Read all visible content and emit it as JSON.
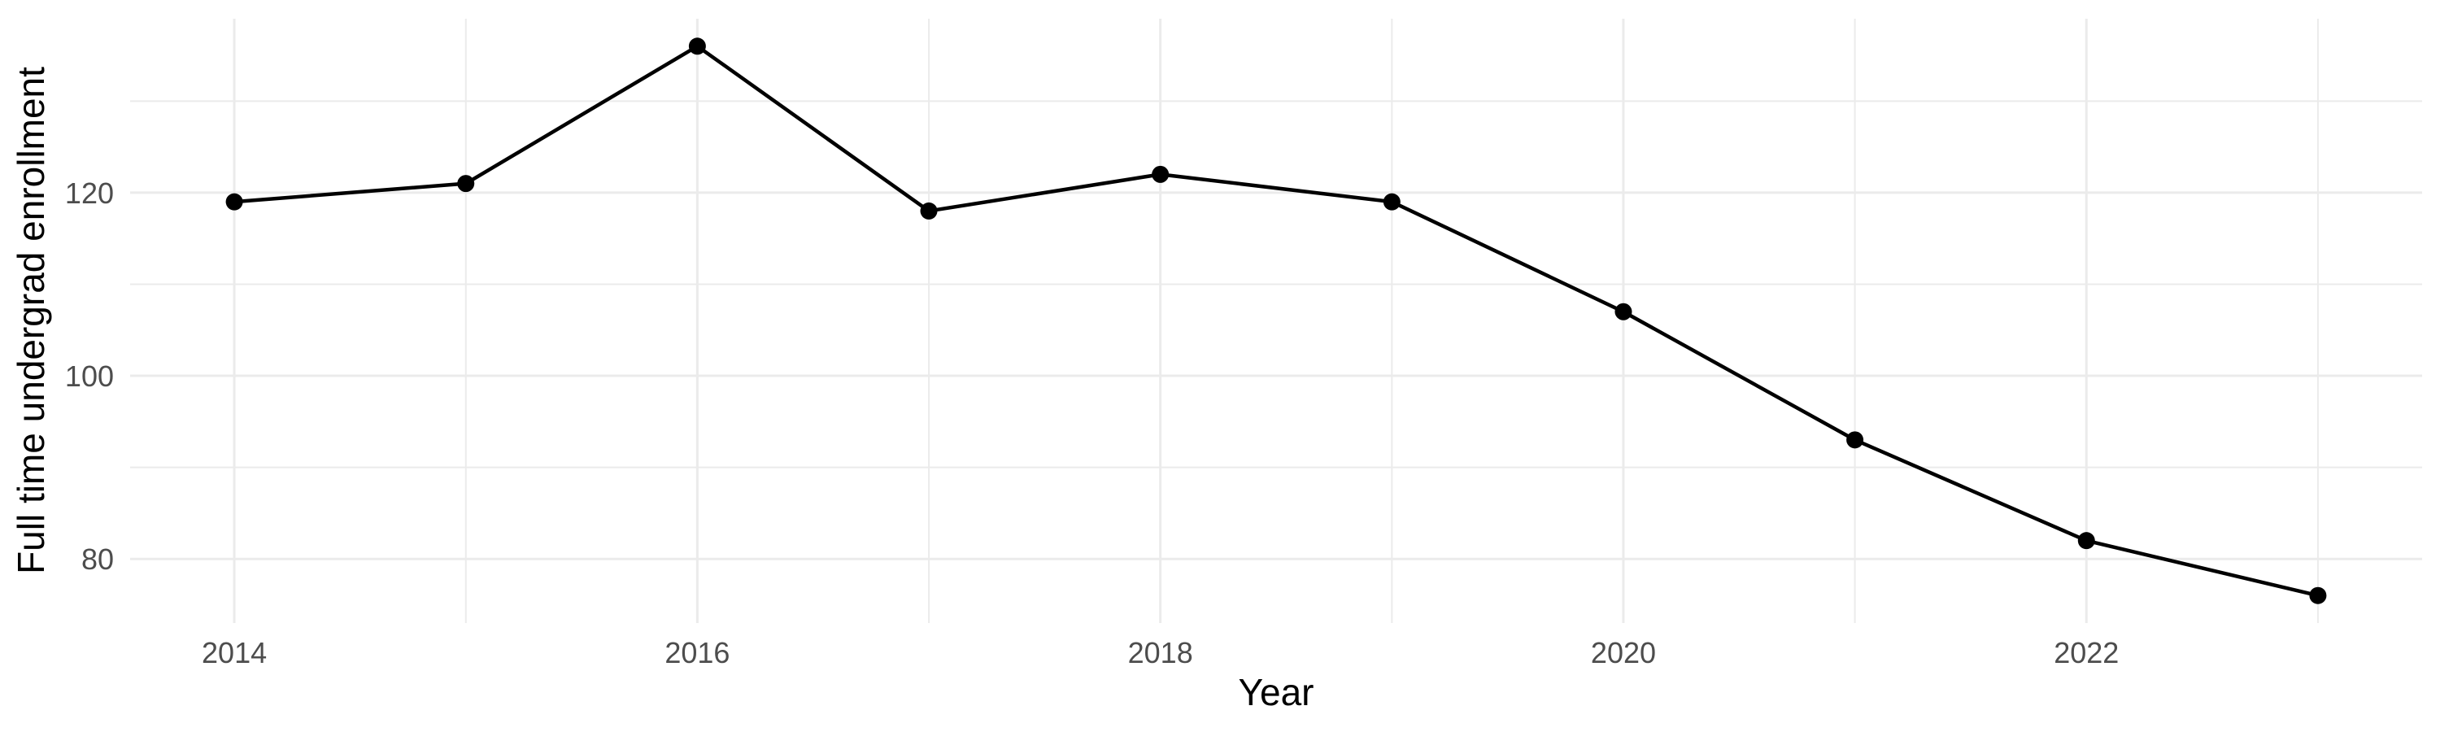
{
  "chart_data": {
    "type": "line",
    "title": "",
    "xlabel": "Year",
    "ylabel": "Full time undergrad enrollment",
    "x": [
      2014,
      2015,
      2016,
      2017,
      2018,
      2019,
      2020,
      2021,
      2022,
      2023
    ],
    "values": [
      119,
      121,
      136,
      118,
      122,
      119,
      107,
      93,
      82,
      76
    ],
    "series_name": "Full time undergrad enrollment",
    "x_ticks_major": [
      2014,
      2016,
      2018,
      2020,
      2022
    ],
    "x_ticks_minor": [
      2015,
      2017,
      2019,
      2021,
      2023
    ],
    "y_ticks_major": [
      80,
      100,
      120
    ],
    "y_ticks_minor": [
      90,
      110,
      130
    ],
    "xlim": [
      2013.55,
      2023.45
    ],
    "ylim": [
      73,
      139
    ],
    "grid": true,
    "legend_position": "none",
    "point_marker": "filled-circle"
  },
  "style": {
    "background_color": "#ffffff",
    "grid_color": "#ebebeb",
    "tick_label_color": "#4d4d4d",
    "axis_title_color": "#000000",
    "line_color": "#000000",
    "point_color": "#000000"
  }
}
